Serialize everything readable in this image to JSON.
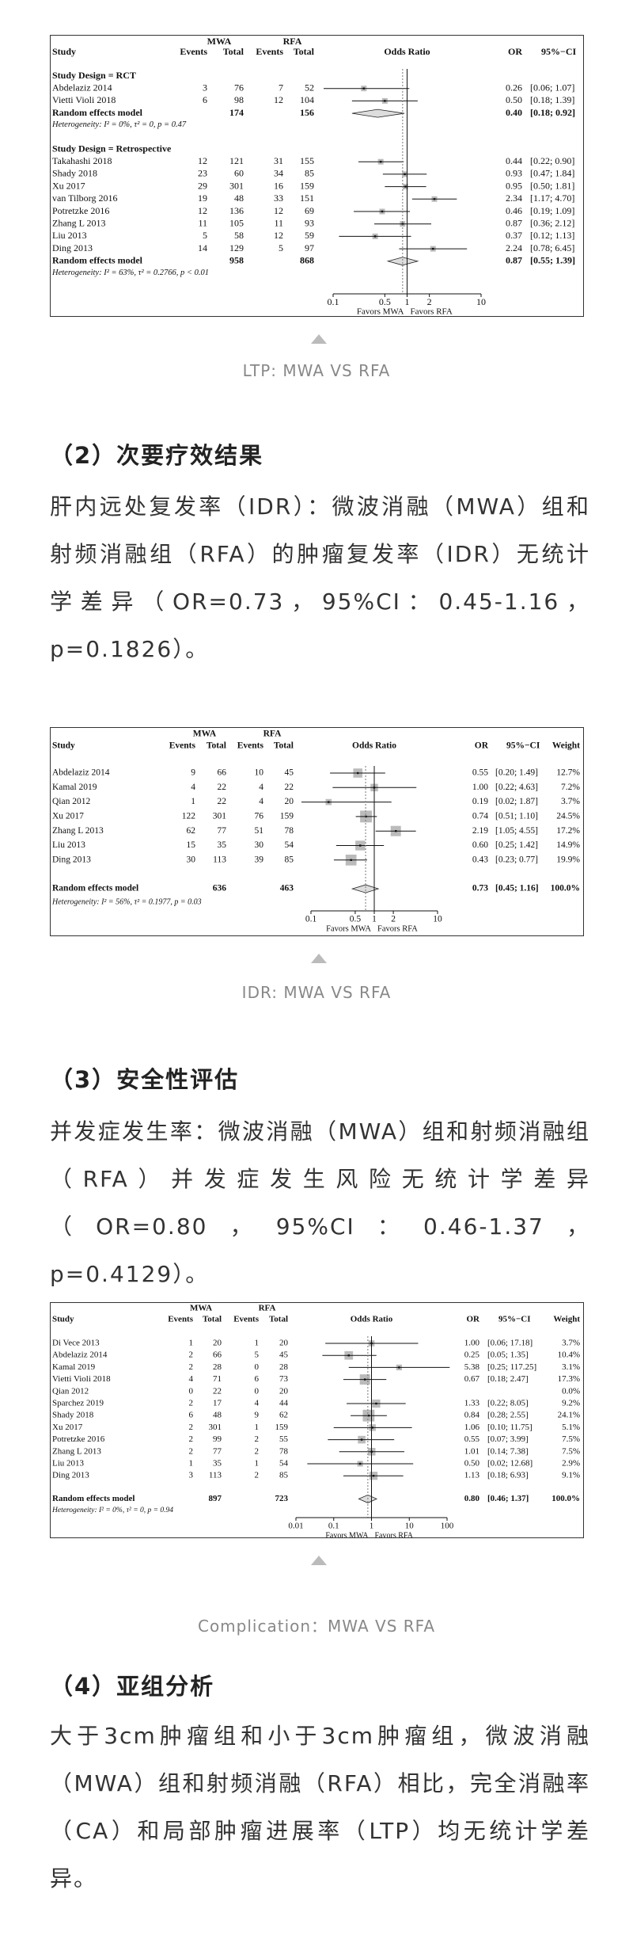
{
  "figures": [
    {
      "headers": {
        "study": "Study",
        "group1": "MWA",
        "group2": "RFA",
        "events": "Events",
        "total": "Total",
        "effect": "Odds Ratio",
        "or": "OR",
        "ci": "95%−CI"
      },
      "groups": [
        {
          "title": "Study Design = RCT",
          "studies": [
            {
              "study": "Abdelaziz 2014",
              "e1": 3,
              "t1": 76,
              "e2": 7,
              "t2": 52,
              "or": 0.26,
              "or_label": "0.26",
              "ci": [
                0.06,
                1.07
              ],
              "ci_label": "[0.06; 1.07]"
            },
            {
              "study": "Vietti Violi 2018",
              "e1": 6,
              "t1": 98,
              "e2": 12,
              "t2": 104,
              "or": 0.5,
              "or_label": "0.50",
              "ci": [
                0.18,
                1.39
              ],
              "ci_label": "[0.18; 1.39]"
            }
          ],
          "summary": {
            "label": "Random effects model",
            "t1": 174,
            "t2": 156,
            "or": 0.4,
            "or_label": "0.40",
            "ci": [
              0.18,
              0.92
            ],
            "ci_label": "[0.18; 0.92]"
          },
          "heterogeneity": "Heterogeneity: I² = 0%, τ² = 0, p = 0.47"
        },
        {
          "title": "Study Design = Retrospective",
          "studies": [
            {
              "study": "Takahashi 2018",
              "e1": 12,
              "t1": 121,
              "e2": 31,
              "t2": 155,
              "or": 0.44,
              "or_label": "0.44",
              "ci": [
                0.22,
                0.9
              ],
              "ci_label": "[0.22; 0.90]"
            },
            {
              "study": "Shady 2018",
              "e1": 23,
              "t1": 60,
              "e2": 34,
              "t2": 85,
              "or": 0.93,
              "or_label": "0.93",
              "ci": [
                0.47,
                1.84
              ],
              "ci_label": "[0.47; 1.84]"
            },
            {
              "study": "Xu 2017",
              "e1": 29,
              "t1": 301,
              "e2": 16,
              "t2": 159,
              "or": 0.95,
              "or_label": "0.95",
              "ci": [
                0.5,
                1.81
              ],
              "ci_label": "[0.50; 1.81]"
            },
            {
              "study": "van Tilborg 2016",
              "e1": 19,
              "t1": 48,
              "e2": 33,
              "t2": 151,
              "or": 2.34,
              "or_label": "2.34",
              "ci": [
                1.17,
                4.7
              ],
              "ci_label": "[1.17; 4.70]"
            },
            {
              "study": "Potretzke 2016",
              "e1": 12,
              "t1": 136,
              "e2": 12,
              "t2": 69,
              "or": 0.46,
              "or_label": "0.46",
              "ci": [
                0.19,
                1.09
              ],
              "ci_label": "[0.19; 1.09]"
            },
            {
              "study": "Zhang L 2013",
              "e1": 11,
              "t1": 105,
              "e2": 11,
              "t2": 93,
              "or": 0.87,
              "or_label": "0.87",
              "ci": [
                0.36,
                2.12
              ],
              "ci_label": "[0.36; 2.12]"
            },
            {
              "study": "Liu 2013",
              "e1": 5,
              "t1": 58,
              "e2": 12,
              "t2": 59,
              "or": 0.37,
              "or_label": "0.37",
              "ci": [
                0.12,
                1.13
              ],
              "ci_label": "[0.12; 1.13]"
            },
            {
              "study": "Ding 2013",
              "e1": 14,
              "t1": 129,
              "e2": 5,
              "t2": 97,
              "or": 2.24,
              "or_label": "2.24",
              "ci": [
                0.78,
                6.45
              ],
              "ci_label": "[0.78; 6.45]"
            }
          ],
          "summary": {
            "label": "Random effects model",
            "t1": 958,
            "t2": 868,
            "or": 0.87,
            "or_label": "0.87",
            "ci": [
              0.55,
              1.39
            ],
            "ci_label": "[0.55; 1.39]"
          },
          "heterogeneity": "Heterogeneity: I² = 63%, τ² = 0.2766, p < 0.01"
        }
      ],
      "axis": {
        "log": true,
        "xlim": [
          0.1,
          10
        ],
        "xticks": [
          0.1,
          0.5,
          1,
          2,
          10
        ],
        "favors": [
          "Favors MWA",
          "Favors RFA"
        ]
      },
      "caption": "LTP: MWA VS RFA"
    },
    {
      "headers": {
        "study": "Study",
        "group1": "MWA",
        "group2": "RFA",
        "events": "Events",
        "total": "Total",
        "effect": "Odds Ratio",
        "or": "OR",
        "ci": "95%−CI",
        "weight": "Weight"
      },
      "groups": [
        {
          "studies": [
            {
              "study": "Abdelaziz 2014",
              "e1": 9,
              "t1": 66,
              "e2": 10,
              "t2": 45,
              "or": 0.55,
              "or_label": "0.55",
              "ci": [
                0.2,
                1.49
              ],
              "ci_label": "[0.20; 1.49]",
              "weight": 12.7,
              "weight_label": "12.7%"
            },
            {
              "study": "Kamal 2019",
              "e1": 4,
              "t1": 22,
              "e2": 4,
              "t2": 22,
              "or": 1,
              "or_label": "1.00",
              "ci": [
                0.22,
                4.63
              ],
              "ci_label": "[0.22; 4.63]",
              "weight": 7.2,
              "weight_label": "7.2%"
            },
            {
              "study": "Qian 2012",
              "e1": 1,
              "t1": 22,
              "e2": 4,
              "t2": 20,
              "or": 0.19,
              "or_label": "0.19",
              "ci": [
                0.02,
                1.87
              ],
              "ci_label": "[0.02; 1.87]",
              "weight": 3.7,
              "weight_label": "3.7%"
            },
            {
              "study": "Xu 2017",
              "e1": 122,
              "t1": 301,
              "e2": 76,
              "t2": 159,
              "or": 0.74,
              "or_label": "0.74",
              "ci": [
                0.51,
                1.1
              ],
              "ci_label": "[0.51; 1.10]",
              "weight": 24.5,
              "weight_label": "24.5%"
            },
            {
              "study": "Zhang L 2013",
              "e1": 62,
              "t1": 77,
              "e2": 51,
              "t2": 78,
              "or": 2.19,
              "or_label": "2.19",
              "ci": [
                1.05,
                4.55
              ],
              "ci_label": "[1.05; 4.55]",
              "weight": 17.2,
              "weight_label": "17.2%"
            },
            {
              "study": "Liu 2013",
              "e1": 15,
              "t1": 35,
              "e2": 30,
              "t2": 54,
              "or": 0.6,
              "or_label": "0.60",
              "ci": [
                0.25,
                1.42
              ],
              "ci_label": "[0.25; 1.42]",
              "weight": 14.9,
              "weight_label": "14.9%"
            },
            {
              "study": "Ding 2013",
              "e1": 30,
              "t1": 113,
              "e2": 39,
              "t2": 85,
              "or": 0.43,
              "or_label": "0.43",
              "ci": [
                0.23,
                0.77
              ],
              "ci_label": "[0.23; 0.77]",
              "weight": 19.9,
              "weight_label": "19.9%"
            }
          ],
          "summary": {
            "label": "Random effects model",
            "t1": 636,
            "t2": 463,
            "or": 0.73,
            "or_label": "0.73",
            "ci": [
              0.45,
              1.16
            ],
            "ci_label": "[0.45; 1.16]",
            "weight": 100,
            "weight_label": "100.0%"
          },
          "heterogeneity": "Heterogeneity: I² = 56%, τ² = 0.1977, p = 0.03"
        }
      ],
      "axis": {
        "log": true,
        "xlim": [
          0.1,
          10
        ],
        "xticks": [
          0.1,
          0.5,
          1,
          2,
          10
        ],
        "favors": [
          "Favors MWA",
          "Favors RFA"
        ]
      },
      "caption": "IDR: MWA VS RFA"
    },
    {
      "headers": {
        "study": "Study",
        "group1": "MWA",
        "group2": "RFA",
        "events": "Events",
        "total": "Total",
        "effect": "Odds Ratio",
        "or": "OR",
        "ci": "95%−CI",
        "weight": "Weight"
      },
      "groups": [
        {
          "studies": [
            {
              "study": "Di Vece 2013",
              "e1": 1,
              "t1": 20,
              "e2": 1,
              "t2": 20,
              "or": 1,
              "or_label": "1.00",
              "ci": [
                0.06,
                17.18
              ],
              "ci_label": "[0.06; 17.18]",
              "weight": 3.7,
              "weight_label": "3.7%"
            },
            {
              "study": "Abdelaziz 2014",
              "e1": 2,
              "t1": 66,
              "e2": 5,
              "t2": 45,
              "or": 0.25,
              "or_label": "0.25",
              "ci": [
                0.05,
                1.35
              ],
              "ci_label": "[0.05; 1.35]",
              "weight": 10.4,
              "weight_label": "10.4%"
            },
            {
              "study": "Kamal 2019",
              "e1": 2,
              "t1": 28,
              "e2": 0,
              "t2": 28,
              "or": 5.38,
              "or_label": "5.38",
              "ci": [
                0.25,
                117.25
              ],
              "ci_label": "[0.25; 117.25]",
              "weight": 3.1,
              "weight_label": "3.1%"
            },
            {
              "study": "Vietti Violi 2018",
              "e1": 4,
              "t1": 71,
              "e2": 6,
              "t2": 73,
              "or": 0.67,
              "or_label": "0.67",
              "ci": [
                0.18,
                2.47
              ],
              "ci_label": "[0.18; 2.47]",
              "weight": 17.3,
              "weight_label": "17.3%"
            },
            {
              "study": "Qian 2012",
              "e1": 0,
              "t1": 22,
              "e2": 0,
              "t2": 20,
              "or": null,
              "ci": null,
              "weight": 0,
              "weight_label": "0.0%"
            },
            {
              "study": "Sparchez 2019",
              "e1": 2,
              "t1": 17,
              "e2": 4,
              "t2": 44,
              "or": 1.33,
              "or_label": "1.33",
              "ci": [
                0.22,
                8.05
              ],
              "ci_label": "[0.22; 8.05]",
              "weight": 9.2,
              "weight_label": "9.2%"
            },
            {
              "study": "Shady 2018",
              "e1": 6,
              "t1": 48,
              "e2": 9,
              "t2": 62,
              "or": 0.84,
              "or_label": "0.84",
              "ci": [
                0.28,
                2.55
              ],
              "ci_label": "[0.28; 2.55]",
              "weight": 24.1,
              "weight_label": "24.1%"
            },
            {
              "study": "Xu 2017",
              "e1": 2,
              "t1": 301,
              "e2": 1,
              "t2": 159,
              "or": 1.06,
              "or_label": "1.06",
              "ci": [
                0.1,
                11.75
              ],
              "ci_label": "[0.10; 11.75]",
              "weight": 5.1,
              "weight_label": "5.1%"
            },
            {
              "study": "Potretzke 2016",
              "e1": 2,
              "t1": 99,
              "e2": 2,
              "t2": 55,
              "or": 0.55,
              "or_label": "0.55",
              "ci": [
                0.07,
                3.99
              ],
              "ci_label": "[0.07; 3.99]",
              "weight": 7.5,
              "weight_label": "7.5%"
            },
            {
              "study": "Zhang L 2013",
              "e1": 2,
              "t1": 77,
              "e2": 2,
              "t2": 78,
              "or": 1.01,
              "or_label": "1.01",
              "ci": [
                0.14,
                7.38
              ],
              "ci_label": "[0.14; 7.38]",
              "weight": 7.5,
              "weight_label": "7.5%"
            },
            {
              "study": "Liu 2013",
              "e1": 1,
              "t1": 35,
              "e2": 1,
              "t2": 54,
              "or": 0.5,
              "or_label": "0.50",
              "ci": [
                0.02,
                12.68
              ],
              "ci_label": "[0.02; 12.68]",
              "weight": 2.9,
              "weight_label": "2.9%"
            },
            {
              "study": "Ding 2013",
              "e1": 3,
              "t1": 113,
              "e2": 2,
              "t2": 85,
              "or": 1.13,
              "or_label": "1.13",
              "ci": [
                0.18,
                6.93
              ],
              "ci_label": "[0.18; 6.93]",
              "weight": 9.1,
              "weight_label": "9.1%"
            }
          ],
          "summary": {
            "label": "Random effects model",
            "t1": 897,
            "t2": 723,
            "or": 0.8,
            "or_label": "0.80",
            "ci": [
              0.46,
              1.37
            ],
            "ci_label": "[0.46; 1.37]",
            "weight": 100,
            "weight_label": "100.0%"
          },
          "heterogeneity": "Heterogeneity: I² = 0%, τ² = 0, p = 0.94"
        }
      ],
      "axis": {
        "log": true,
        "xlim": [
          0.01,
          100
        ],
        "xticks": [
          0.01,
          0.1,
          1,
          10,
          100
        ],
        "favors": [
          "Favors MWA",
          "Favors RFA"
        ]
      },
      "caption": "Complication：MWA VS RFA"
    }
  ],
  "sections": [
    {
      "heading": "（2）次要疗效结果",
      "text": "肝内远处复发率（IDR）：微波消融（MWA）组和射频消融组（RFA）的肿瘤复发率（IDR）无统计学差异（OR=0.73，95%CI：0.45-1.16，p=0.1826）。"
    },
    {
      "heading": "（3）安全性评估",
      "text": "并发症发生率：微波消融（MWA）组和射频消融组（RFA）并发症发生风险无统计学差异（OR=0.80，95%CI：0.46-1.37，p=0.4129）。"
    },
    {
      "heading": "（4）亚组分析",
      "text": "大于3cm肿瘤组和小于3cm肿瘤组，微波消融（MWA）组和射频消融（RFA）相比，完全消融率（CA）和局部肿瘤进展率（LTP）均无统计学差异。"
    }
  ]
}
